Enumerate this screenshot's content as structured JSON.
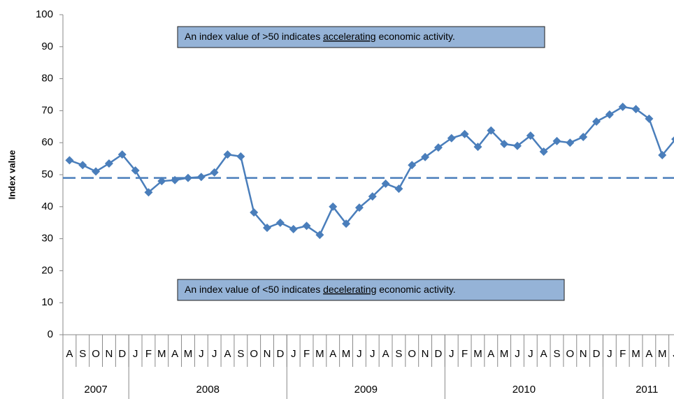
{
  "chart_data": {
    "type": "line",
    "y_label": "Index value",
    "categories": [
      "A",
      "S",
      "O",
      "N",
      "D",
      "J",
      "F",
      "M",
      "A",
      "M",
      "J",
      "J",
      "A",
      "S",
      "O",
      "N",
      "D",
      "J",
      "F",
      "M",
      "A",
      "M",
      "J",
      "J",
      "A",
      "S",
      "O",
      "N",
      "D",
      "J",
      "F",
      "M",
      "A",
      "M",
      "J",
      "J",
      "A",
      "S",
      "O",
      "N",
      "D",
      "J",
      "F",
      "M",
      "A",
      "M",
      "J"
    ],
    "year_groups": [
      {
        "label": "2007",
        "span": 5
      },
      {
        "label": "2008",
        "span": 12
      },
      {
        "label": "2009",
        "span": 12
      },
      {
        "label": "2010",
        "span": 12
      },
      {
        "label": "2011",
        "span": 6
      }
    ],
    "series": [
      {
        "name": "Index",
        "color": "#4a7ebb",
        "values": [
          54.5,
          53,
          51,
          53.5,
          56.3,
          51.3,
          44.5,
          48,
          48.3,
          49,
          49.3,
          50.7,
          56.3,
          55.7,
          38.2,
          33.4,
          35,
          33,
          34,
          31.2,
          40,
          34.7,
          39.7,
          43.2,
          47.2,
          45.6,
          53,
          55.5,
          58.5,
          61.4,
          62.7,
          58.7,
          63.8,
          59.6,
          59,
          62.2,
          57.2,
          60.5,
          60,
          61.8,
          66.6,
          68.8,
          71.2,
          70.5,
          67.5,
          56.1,
          61.1
        ]
      }
    ],
    "reference_line": 49,
    "ylim": [
      0,
      100
    ],
    "yticks": [
      0,
      10,
      20,
      30,
      40,
      50,
      60,
      70,
      80,
      90,
      100
    ],
    "annotations": [
      {
        "parts": [
          "An index value of >50 indicates ",
          "accelerating",
          " economic activity."
        ],
        "y": 93
      },
      {
        "parts": [
          "An index value of <50 indicates ",
          "decelerating",
          " economic activity."
        ],
        "y": 14
      }
    ]
  }
}
